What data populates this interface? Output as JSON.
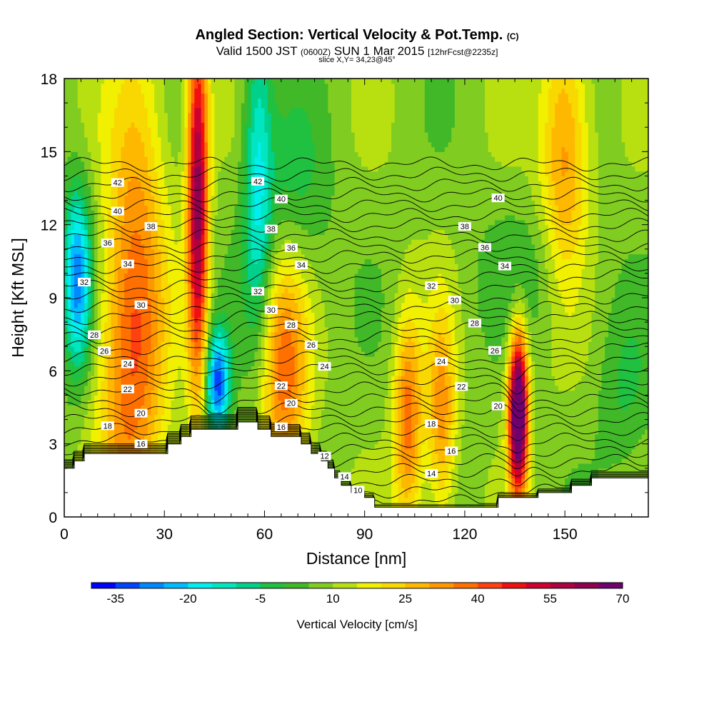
{
  "title": {
    "main": "Angled Section: Vertical Velocity & Pot.Temp.",
    "main_tag": "(C)",
    "valid_prefix": "Valid 1500 JST",
    "valid_utc": "(0600Z)",
    "valid_date": "SUN 1 Mar 2015",
    "forecast": "[12hrFcst@2235z]",
    "slice": "slice X,Y= 34,23@45°"
  },
  "chart_data": {
    "type": "heatmap",
    "xlabel": "Distance [nm]",
    "ylabel": "Height [Kft MSL]",
    "xlim": [
      0,
      175
    ],
    "ylim": [
      0,
      18
    ],
    "x_ticks": [
      0,
      30,
      60,
      90,
      120,
      150
    ],
    "y_ticks": [
      0,
      3,
      6,
      9,
      12,
      15,
      18
    ],
    "colorbar": {
      "label": "Vertical Velocity [cm/s]",
      "min": -40,
      "step": 5,
      "tick_labels": [
        "-35",
        "-20",
        "-5",
        "10",
        "25",
        "40",
        "55",
        "70"
      ],
      "tick_values": [
        -35,
        -20,
        -5,
        10,
        25,
        40,
        55,
        70
      ],
      "colors": [
        "#0000ff",
        "#0044ff",
        "#0088ff",
        "#00bbff",
        "#00eeee",
        "#00e6c0",
        "#00d08a",
        "#20c040",
        "#40b828",
        "#80cc20",
        "#b8e010",
        "#f0f000",
        "#f8d800",
        "#ffb800",
        "#ff9800",
        "#ff7000",
        "#ff4010",
        "#f01010",
        "#d00030",
        "#b00040",
        "#900050",
        "#700070"
      ]
    },
    "velocity_field": {
      "background": 8,
      "features": [
        {
          "x": 4,
          "z": 9.8,
          "sx": 3,
          "sz": 2.6,
          "w": -36
        },
        {
          "x": 20,
          "z": 5.5,
          "sx": 7,
          "sz": 5,
          "w": 28
        },
        {
          "x": 22,
          "z": 14,
          "sx": 6,
          "sz": 5,
          "w": 16
        },
        {
          "x": 40,
          "z": 13,
          "sx": 2.2,
          "sz": 5.5,
          "w": 55
        },
        {
          "x": 46,
          "z": 5.5,
          "sx": 2.5,
          "sz": 1.5,
          "w": -40
        },
        {
          "x": 58,
          "z": 14,
          "sx": 3,
          "sz": 5,
          "w": -22
        },
        {
          "x": 66,
          "z": 6,
          "sx": 5,
          "sz": 3.5,
          "w": 30
        },
        {
          "x": 68,
          "z": 13,
          "sx": 8,
          "sz": 3,
          "w": -10
        },
        {
          "x": 103,
          "z": 4,
          "sx": 3,
          "sz": 3,
          "w": 30
        },
        {
          "x": 113,
          "z": 4.2,
          "sx": 3,
          "sz": 3,
          "w": 25
        },
        {
          "x": 136,
          "z": 4.3,
          "sx": 2,
          "sz": 2.3,
          "w": 78
        },
        {
          "x": 150,
          "z": 15,
          "sx": 5,
          "sz": 4,
          "w": 25
        },
        {
          "x": 168,
          "z": 5,
          "sx": 6,
          "sz": 2.5,
          "w": -8
        },
        {
          "x": 140,
          "z": 10,
          "sx": 12,
          "sz": 2,
          "w": -6
        }
      ]
    },
    "terrain": [
      [
        0,
        2
      ],
      [
        3,
        2
      ],
      [
        3,
        2.3
      ],
      [
        6,
        2.3
      ],
      [
        6,
        2.6
      ],
      [
        31,
        2.6
      ],
      [
        31,
        3
      ],
      [
        35,
        3
      ],
      [
        35,
        3.3
      ],
      [
        38,
        3.3
      ],
      [
        38,
        3.6
      ],
      [
        52,
        3.6
      ],
      [
        52,
        3.9
      ],
      [
        58,
        3.9
      ],
      [
        58,
        3.6
      ],
      [
        62,
        3.6
      ],
      [
        62,
        3.3
      ],
      [
        71,
        3.3
      ],
      [
        71,
        3
      ],
      [
        74,
        3
      ],
      [
        74,
        2.6
      ],
      [
        77,
        2.6
      ],
      [
        77,
        2.3
      ],
      [
        79,
        2.3
      ],
      [
        79,
        2
      ],
      [
        81,
        2
      ],
      [
        81,
        1.6
      ],
      [
        83,
        1.6
      ],
      [
        83,
        1.3
      ],
      [
        86,
        1.3
      ],
      [
        86,
        1
      ],
      [
        90,
        1
      ],
      [
        90,
        0.8
      ],
      [
        93,
        0.8
      ],
      [
        93,
        0.4
      ],
      [
        130,
        0.4
      ],
      [
        130,
        0.8
      ],
      [
        142,
        0.8
      ],
      [
        142,
        1
      ],
      [
        152,
        1
      ],
      [
        152,
        1.3
      ],
      [
        158,
        1.3
      ],
      [
        158,
        1.6
      ],
      [
        175,
        1.6
      ]
    ],
    "theta_levels": [
      {
        "value": 10,
        "label": "10",
        "label_x": 88
      },
      {
        "value": 12,
        "label": "12",
        "label_x": 78
      },
      {
        "value": 14,
        "label": "14",
        "label_x": 84
      },
      {
        "value": 14,
        "label": "14",
        "label_x": 110
      },
      {
        "value": 16,
        "label": "16",
        "label_x": 23
      },
      {
        "value": 16,
        "label": "16",
        "label_x": 65
      },
      {
        "value": 16,
        "label": "16",
        "label_x": 116
      },
      {
        "value": 18,
        "label": "18",
        "label_x": 13
      },
      {
        "value": 18,
        "label": "18",
        "label_x": 110
      },
      {
        "value": 20,
        "label": "20",
        "label_x": 23
      },
      {
        "value": 20,
        "label": "20",
        "label_x": 68
      },
      {
        "value": 20,
        "label": "20",
        "label_x": 130
      },
      {
        "value": 22,
        "label": "22",
        "label_x": 19
      },
      {
        "value": 22,
        "label": "22",
        "label_x": 65
      },
      {
        "value": 22,
        "label": "22",
        "label_x": 119
      },
      {
        "value": 24,
        "label": "24",
        "label_x": 19
      },
      {
        "value": 24,
        "label": "24",
        "label_x": 78
      },
      {
        "value": 24,
        "label": "24",
        "label_x": 113
      },
      {
        "value": 26,
        "label": "26",
        "label_x": 12
      },
      {
        "value": 26,
        "label": "26",
        "label_x": 74
      },
      {
        "value": 26,
        "label": "26",
        "label_x": 129
      },
      {
        "value": 28,
        "label": "28",
        "label_x": 9
      },
      {
        "value": 28,
        "label": "28",
        "label_x": 68
      },
      {
        "value": 28,
        "label": "28",
        "label_x": 123
      },
      {
        "value": 30,
        "label": "30",
        "label_x": 23
      },
      {
        "value": 30,
        "label": "30",
        "label_x": 62
      },
      {
        "value": 30,
        "label": "30",
        "label_x": 117
      },
      {
        "value": 32,
        "label": "32",
        "label_x": 6
      },
      {
        "value": 32,
        "label": "32",
        "label_x": 58
      },
      {
        "value": 32,
        "label": "32",
        "label_x": 110
      },
      {
        "value": 34,
        "label": "34",
        "label_x": 19
      },
      {
        "value": 34,
        "label": "34",
        "label_x": 71
      },
      {
        "value": 34,
        "label": "34",
        "label_x": 132
      },
      {
        "value": 36,
        "label": "36",
        "label_x": 13
      },
      {
        "value": 36,
        "label": "36",
        "label_x": 68
      },
      {
        "value": 36,
        "label": "36",
        "label_x": 126
      },
      {
        "value": 38,
        "label": "38",
        "label_x": 26
      },
      {
        "value": 38,
        "label": "38",
        "label_x": 62
      },
      {
        "value": 38,
        "label": "38",
        "label_x": 120
      },
      {
        "value": 40,
        "label": "40",
        "label_x": 16
      },
      {
        "value": 40,
        "label": "40",
        "label_x": 65
      },
      {
        "value": 40,
        "label": "40",
        "label_x": 130
      },
      {
        "value": 42,
        "label": "42",
        "label_x": 16
      },
      {
        "value": 42,
        "label": "42",
        "label_x": 58
      }
    ]
  }
}
